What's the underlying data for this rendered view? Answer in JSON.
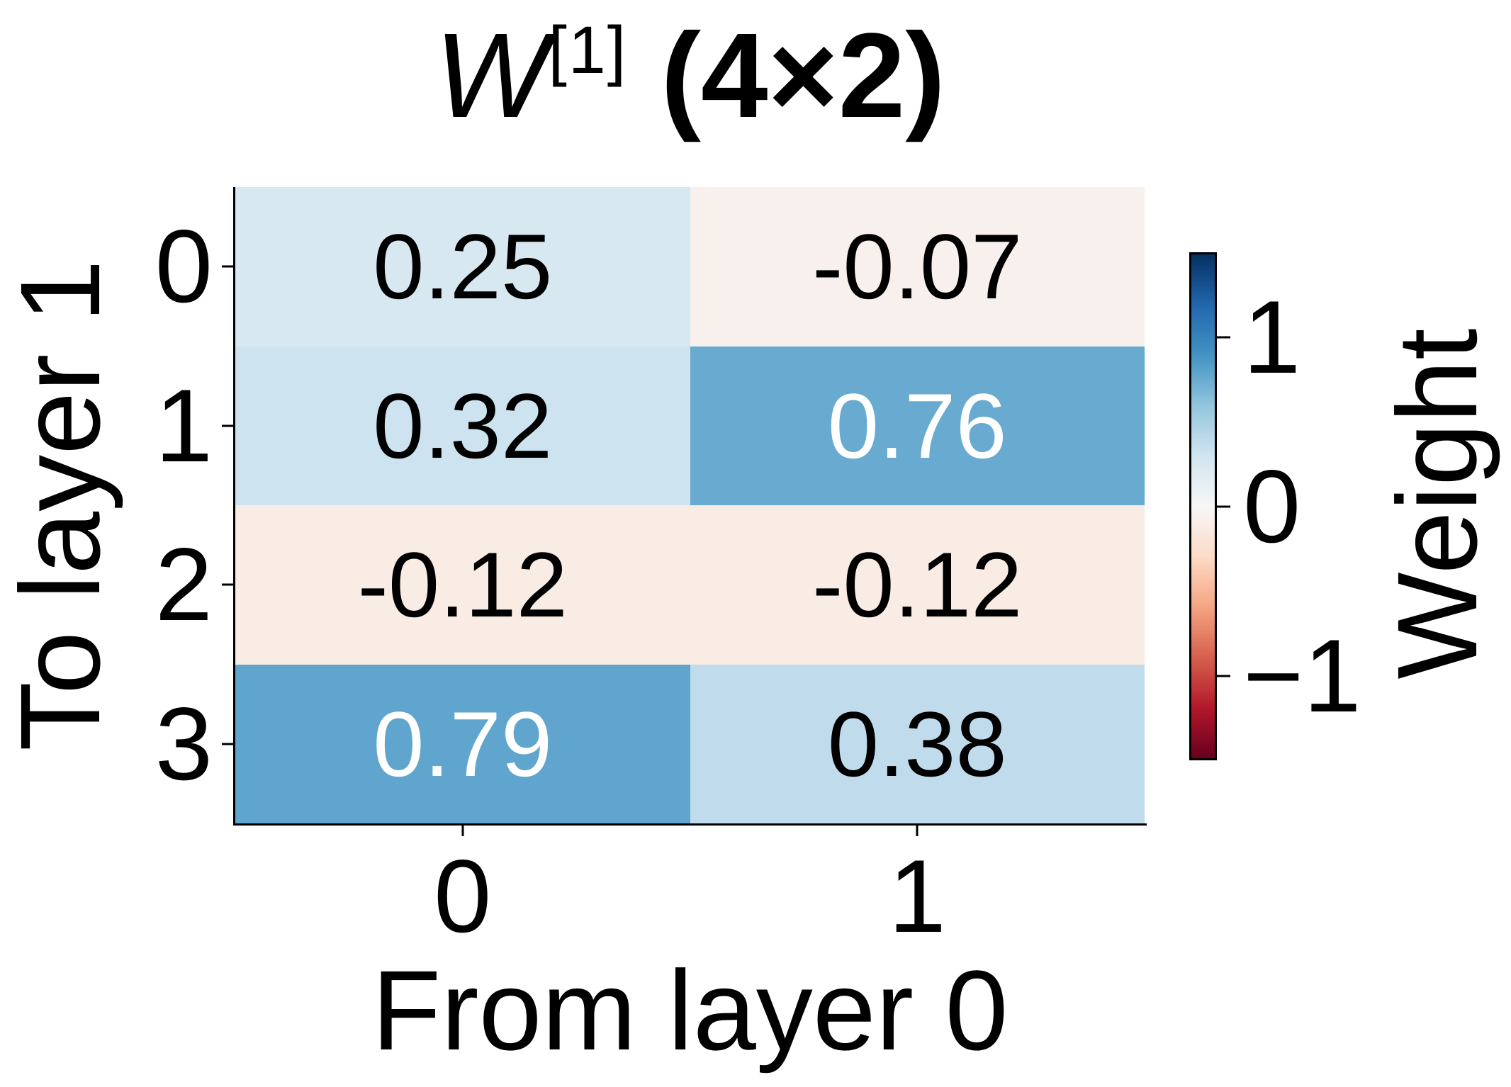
{
  "title": {
    "symbol": "W",
    "superscript": "[1]",
    "shape_suffix": " (4×2)"
  },
  "chart_data": {
    "type": "heatmap",
    "title": "W^[1] (4×2)",
    "xlabel": "From layer 0",
    "ylabel": "To layer 1",
    "x_ticklabels": [
      "0",
      "1"
    ],
    "y_ticklabels": [
      "0",
      "1",
      "2",
      "3"
    ],
    "values": [
      [
        0.25,
        -0.07
      ],
      [
        0.32,
        0.76
      ],
      [
        -0.12,
        -0.12
      ],
      [
        0.79,
        0.38
      ]
    ],
    "cells": [
      [
        {
          "label": "0.25",
          "bg": "#d7e8f1",
          "fg": "#000000"
        },
        {
          "label": "-0.07",
          "bg": "#f8f0ec",
          "fg": "#000000"
        }
      ],
      [
        {
          "label": "0.32",
          "bg": "#cde3ef",
          "fg": "#000000"
        },
        {
          "label": "0.76",
          "bg": "#68aad0",
          "fg": "#ffffff"
        }
      ],
      [
        {
          "label": "-0.12",
          "bg": "#f9ece4",
          "fg": "#000000"
        },
        {
          "label": "-0.12",
          "bg": "#f9ece4",
          "fg": "#000000"
        }
      ],
      [
        {
          "label": "0.79",
          "bg": "#60a5cd",
          "fg": "#ffffff"
        },
        {
          "label": "0.38",
          "bg": "#c0dcec",
          "fg": "#000000"
        }
      ]
    ],
    "colorbar": {
      "label": "Weight",
      "colormap": "RdBu",
      "vmin": -1.5,
      "vmax": 1.5,
      "ticks": [
        {
          "value": 1,
          "label": "1"
        },
        {
          "value": 0,
          "label": "0"
        },
        {
          "value": -1,
          "label": "−1"
        }
      ],
      "gradient_top_to_bottom": [
        "#053061",
        "#2166ac",
        "#4393c3",
        "#92c5de",
        "#d1e5f0",
        "#f7f7f7",
        "#fddbc7",
        "#f4a582",
        "#d6604d",
        "#b2182b",
        "#67001f"
      ]
    },
    "axis_color": "#000000",
    "background": "#ffffff",
    "grid": false,
    "legend_position": "colorbar-right"
  }
}
